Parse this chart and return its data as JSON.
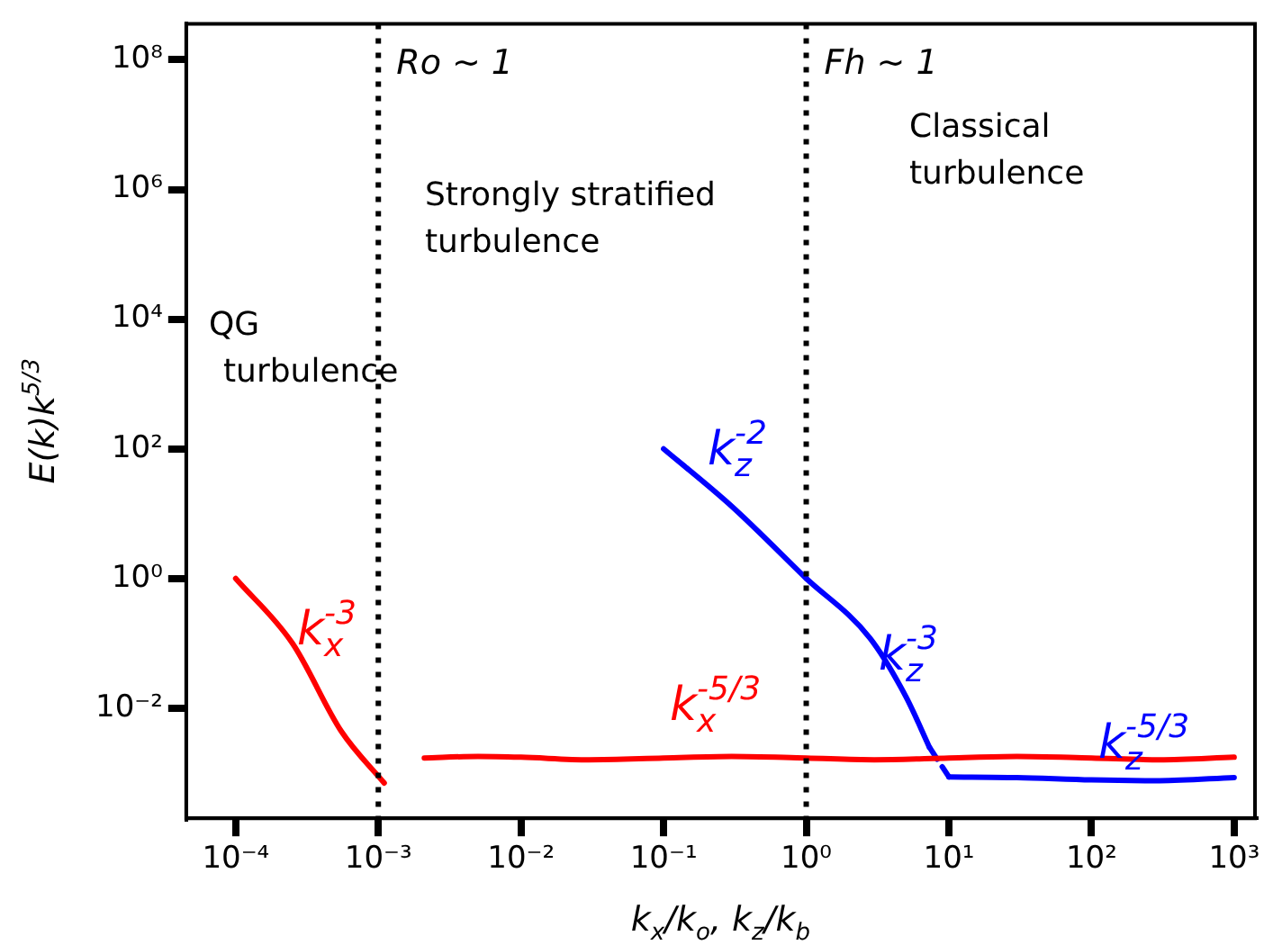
{
  "chart_data": {
    "type": "line",
    "xlabel": "k$_{x}$/k$_{o}$, k$_{z}$/k$_{b}$",
    "ylabel": "E(k)k$^{5/3}$",
    "log": "xy",
    "grid": false,
    "legend": false,
    "xlim": [
      4.5e-05,
      1400
    ],
    "ylim": [
      0.0002,
      360000000
    ],
    "xticks": [
      {
        "value": 0.0001,
        "label": "10⁻⁴"
      },
      {
        "value": 0.001,
        "label": "10⁻³"
      },
      {
        "value": 0.01,
        "label": "10⁻²"
      },
      {
        "value": 0.1,
        "label": "10⁻¹"
      },
      {
        "value": 1,
        "label": "10⁰"
      },
      {
        "value": 10,
        "label": "10¹"
      },
      {
        "value": 100,
        "label": "10²"
      },
      {
        "value": 1000,
        "label": "10³"
      }
    ],
    "yticks": [
      {
        "value": 0.01,
        "label": "10⁻²"
      },
      {
        "value": 1,
        "label": "10⁰"
      },
      {
        "value": 100,
        "label": "10²"
      },
      {
        "value": 10000,
        "label": "10⁴"
      },
      {
        "value": 1000000,
        "label": "10⁶"
      },
      {
        "value": 100000000,
        "label": "10⁸"
      }
    ],
    "series": [
      {
        "name": "k$_{x}$$^{-3}$",
        "color": "#ff0000",
        "x": [
          0.0001,
          0.00025,
          0.00055,
          0.0011
        ],
        "values": [
          1,
          0.1,
          0.0044,
          0.0007
        ]
      },
      {
        "name": "k$_{x}$$^{-5/3}$",
        "color": "#ff0000",
        "x": [
          0.0021,
          0.005,
          0.01,
          0.03,
          0.1,
          0.3,
          1,
          3,
          10,
          30,
          100,
          300,
          1000
        ],
        "values": [
          0.0017,
          0.0018,
          0.00175,
          0.0016,
          0.0017,
          0.0018,
          0.0017,
          0.0016,
          0.0017,
          0.0018,
          0.0017,
          0.0016,
          0.00175
        ]
      },
      {
        "name": "k$_{z}$$^{-2}$",
        "color": "#0000ff",
        "x": [
          0.1,
          0.3,
          1
        ],
        "values": [
          100,
          13,
          1
        ]
      },
      {
        "name": "k$_{z}$$^{-3}$",
        "color": "#0000ff",
        "x": [
          1,
          2.8,
          5,
          7.3
        ],
        "values": [
          1,
          0.12,
          0.015,
          0.0025
        ]
      },
      {
        "color": "#0000ff",
        "x": [
          7.3,
          10
        ],
        "values": [
          0.0025,
          0.00087
        ],
        "line_style": "dashed"
      },
      {
        "name": "k$_{z}$$^{-5/3}$",
        "color": "#0000ff",
        "x": [
          10,
          30,
          100,
          300,
          1000
        ],
        "values": [
          0.00087,
          0.00085,
          0.00078,
          0.00076,
          0.00085
        ]
      }
    ],
    "ref_lines": [
      {
        "axis": "x",
        "value": 0.001,
        "label": "Ro ∼ 1",
        "color": "#000000",
        "line_style": "dotted"
      },
      {
        "axis": "x",
        "value": 1,
        "label": "Fh ∼ 1",
        "color": "#000000",
        "line_style": "dotted"
      }
    ],
    "annotations": [
      "QG turbulence",
      "Strongly stratified turbulence",
      "Classical turbulence"
    ]
  }
}
